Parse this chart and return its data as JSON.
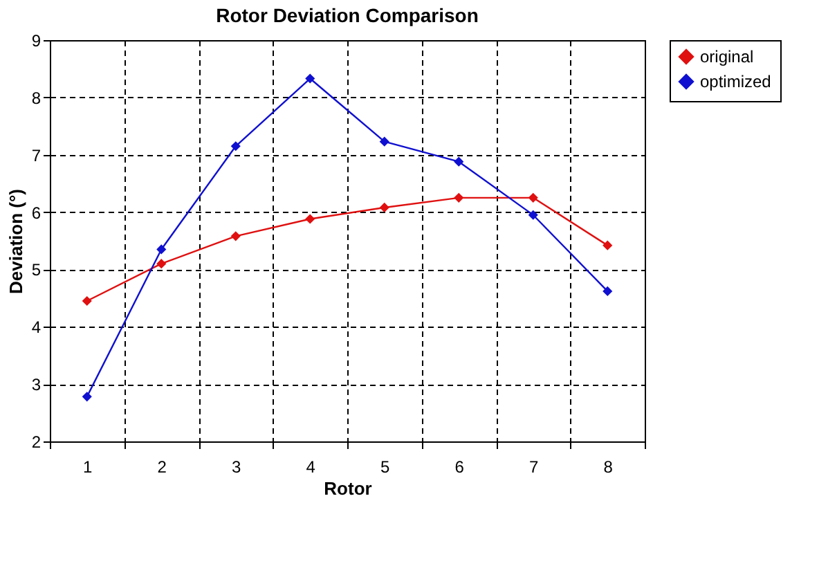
{
  "chart_data": {
    "type": "line",
    "title": "Rotor Deviation Comparison",
    "xlabel": "Rotor",
    "ylabel": "Deviation (°)",
    "categories": [
      "1",
      "2",
      "3",
      "4",
      "5",
      "6",
      "7",
      "8"
    ],
    "series": [
      {
        "name": "original",
        "color": "#e01010",
        "values": [
          4.45,
          5.1,
          5.58,
          5.88,
          6.08,
          6.25,
          6.25,
          5.42
        ]
      },
      {
        "name": "optimized",
        "color": "#1010d0",
        "values": [
          2.78,
          5.35,
          7.15,
          8.33,
          7.23,
          6.88,
          5.95,
          4.62
        ]
      }
    ],
    "ylim": [
      2,
      9
    ],
    "yticks": [
      2,
      3,
      4,
      5,
      6,
      7,
      8,
      9
    ],
    "grid": true,
    "legend": "right",
    "marker": "diamond",
    "line_style": "solid"
  }
}
